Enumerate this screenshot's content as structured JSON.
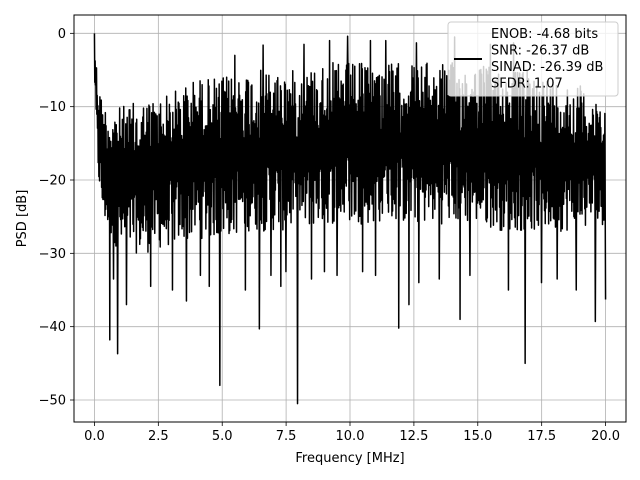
{
  "chart_data": {
    "type": "line",
    "title": "",
    "xlabel": "Frequency [MHz]",
    "ylabel": "PSD [dB]",
    "xlim": [
      -0.8,
      20.8
    ],
    "ylim": [
      -53,
      2.5
    ],
    "xticks": [
      0.0,
      2.5,
      5.0,
      7.5,
      10.0,
      12.5,
      15.0,
      17.5,
      20.0
    ],
    "xtick_labels": [
      "0.0",
      "2.5",
      "5.0",
      "7.5",
      "10.0",
      "12.5",
      "15.0",
      "17.5",
      "20.0"
    ],
    "yticks": [
      0,
      -10,
      -20,
      -30,
      -40,
      -50
    ],
    "ytick_labels": [
      "0",
      "−10",
      "−20",
      "−30",
      "−40",
      "−50"
    ],
    "grid": true,
    "legend_position": "upper right",
    "series": [
      {
        "name": "ENOB: -4.68 bits\nSNR: -26.37 dB\nSINAD: -26.39 dB\nSFDR: 1.07",
        "color": "#000000",
        "envelope": {
          "x": [
            0.0,
            0.05,
            0.15,
            0.3,
            0.5,
            1.0,
            2.0,
            3.0,
            4.0,
            5.0,
            6.0,
            7.0,
            8.0,
            9.0,
            10.0,
            11.0,
            12.0,
            13.0,
            14.0,
            15.0,
            16.0,
            17.0,
            18.0,
            19.0,
            20.0
          ],
          "upper": [
            0.0,
            -3.0,
            -6.0,
            -9.0,
            -10.0,
            -10.0,
            -9.0,
            -8.0,
            -6.0,
            -6.0,
            -5.0,
            -5.0,
            -5.0,
            -4.0,
            -4.0,
            -4.0,
            -4.0,
            -4.0,
            -4.0,
            -4.0,
            -5.0,
            -5.0,
            -6.0,
            -7.0,
            -9.0
          ],
          "lower": [
            -6.0,
            -12.0,
            -20.0,
            -25.0,
            -27.0,
            -30.0,
            -30.0,
            -29.0,
            -28.0,
            -28.0,
            -27.0,
            -27.0,
            -27.0,
            -26.0,
            -26.0,
            -26.0,
            -26.0,
            -26.0,
            -26.0,
            -26.0,
            -27.0,
            -27.0,
            -27.0,
            -27.0,
            -26.0
          ]
        },
        "deep_dips": [
          {
            "x": 0.6,
            "y": -41.8
          },
          {
            "x": 0.9,
            "y": -43.7
          },
          {
            "x": 0.75,
            "y": -33.5
          },
          {
            "x": 1.25,
            "y": -37.0
          },
          {
            "x": 2.2,
            "y": -34.5
          },
          {
            "x": 3.05,
            "y": -35.0
          },
          {
            "x": 3.6,
            "y": -36.5
          },
          {
            "x": 4.15,
            "y": -33.0
          },
          {
            "x": 4.5,
            "y": -34.5
          },
          {
            "x": 4.9,
            "y": -48.0
          },
          {
            "x": 5.9,
            "y": -35.0
          },
          {
            "x": 6.45,
            "y": -40.3
          },
          {
            "x": 6.9,
            "y": -33.0
          },
          {
            "x": 7.3,
            "y": -34.5
          },
          {
            "x": 7.5,
            "y": -32.5
          },
          {
            "x": 7.95,
            "y": -50.5
          },
          {
            "x": 8.5,
            "y": -33.5
          },
          {
            "x": 9.0,
            "y": -32.5
          },
          {
            "x": 9.5,
            "y": -33.0
          },
          {
            "x": 10.5,
            "y": -32.5
          },
          {
            "x": 11.0,
            "y": -33.0
          },
          {
            "x": 11.9,
            "y": -40.2
          },
          {
            "x": 12.3,
            "y": -37.0
          },
          {
            "x": 12.7,
            "y": -34.0
          },
          {
            "x": 13.5,
            "y": -33.5
          },
          {
            "x": 14.3,
            "y": -39.0
          },
          {
            "x": 14.7,
            "y": -33.0
          },
          {
            "x": 15.5,
            "y": -34.0
          },
          {
            "x": 16.2,
            "y": -35.0
          },
          {
            "x": 16.85,
            "y": -45.0
          },
          {
            "x": 17.5,
            "y": -34.0
          },
          {
            "x": 18.1,
            "y": -33.5
          },
          {
            "x": 18.85,
            "y": -35.0
          },
          {
            "x": 19.6,
            "y": -39.3
          },
          {
            "x": 20.0,
            "y": -36.3
          }
        ],
        "peaks": [
          {
            "x": 0.0,
            "y": 0.0
          },
          {
            "x": 5.5,
            "y": -3.0
          },
          {
            "x": 6.6,
            "y": -1.6
          },
          {
            "x": 8.2,
            "y": -1.5
          },
          {
            "x": 9.2,
            "y": -1.0
          },
          {
            "x": 9.9,
            "y": -0.4
          },
          {
            "x": 10.8,
            "y": -1.0
          },
          {
            "x": 11.4,
            "y": -1.0
          },
          {
            "x": 12.6,
            "y": -1.3
          },
          {
            "x": 14.1,
            "y": -0.5
          },
          {
            "x": 15.5,
            "y": -1.5
          },
          {
            "x": 16.4,
            "y": -1.3
          }
        ]
      }
    ],
    "legend_lines": [
      "ENOB: -4.68 bits",
      "SNR: -26.37 dB",
      "SINAD: -26.39 dB",
      "SFDR: 1.07"
    ]
  }
}
